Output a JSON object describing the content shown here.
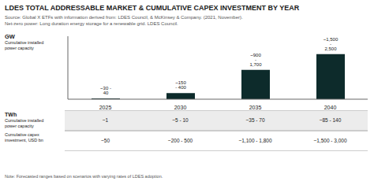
{
  "chart_data": {
    "type": "bar",
    "title": "LDES TOTAL ADDRESSABLE MARKET & CUMULATIVE CAPEX INVESTMENT BY YEAR",
    "subtitle": [
      "Source:  Global X ETFs with information derived from: LDES Council, & McKinsey & Company. (2021, November).",
      "Net-zero power: Long duration energy storage for a renewable grid. LDES Council."
    ],
    "y_label": "GW",
    "y_sublabel": "Cumulative installed\npower capacity",
    "categories": [
      "2025",
      "2030",
      "2035",
      "2040"
    ],
    "values": [
      35,
      275,
      1300,
      2000
    ],
    "value_labels": [
      "~30 - 40",
      "~150 - 400",
      "~900 - 1,700",
      "~1,500 - 2,500"
    ],
    "color": "#0d2b2b",
    "ylim": [
      0,
      2800
    ],
    "tick_labels": "x",
    "data_labels": true,
    "table": [
      {
        "label": "TWh",
        "sublabel": "Cumulative installed\npower capacity",
        "values": [
          "~1",
          "~5 - 10",
          "~35 - 70",
          "~85 - 140"
        ]
      },
      {
        "label": "Cumulative capex\ninvestment, USD bn",
        "values": [
          "~50",
          "~200 - 500",
          "~1,100 - 1,800",
          "~1,500 - 3,000"
        ]
      }
    ],
    "note": "Note: Forecasted ranges based on scenarios with varying rates of LDES adoption."
  }
}
